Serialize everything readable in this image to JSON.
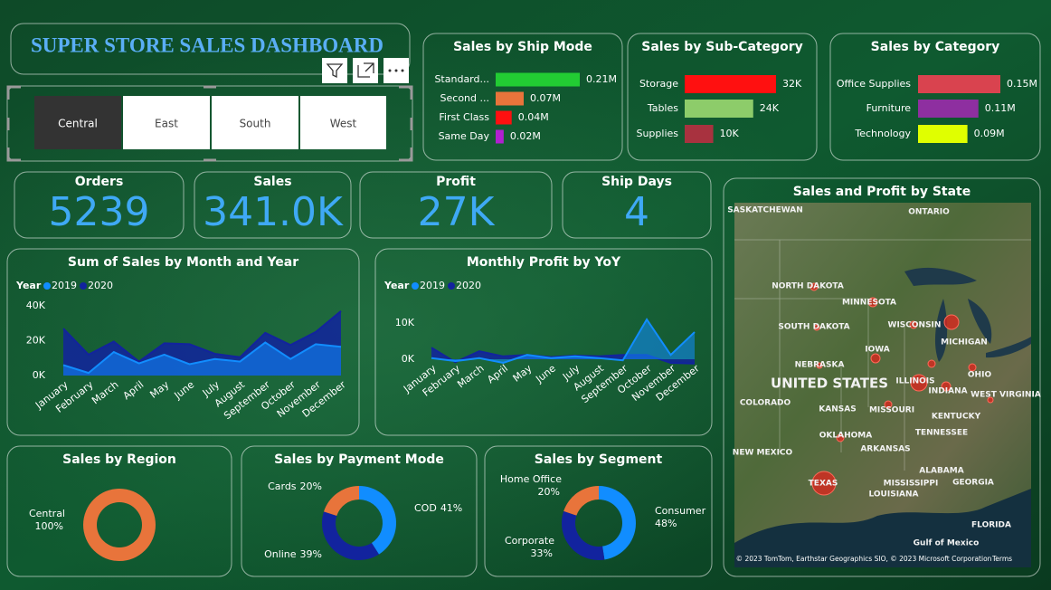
{
  "header": {
    "title": "SUPER STORE SALES DASHBOARD"
  },
  "slicer": {
    "options": [
      "Central",
      "East",
      "South",
      "West"
    ],
    "selected": 0
  },
  "cards": [
    {
      "label": "Orders",
      "value": "5239"
    },
    {
      "label": "Sales",
      "value": "341.0K"
    },
    {
      "label": "Profit",
      "value": "27K"
    },
    {
      "label": "Ship Days",
      "value": "4"
    }
  ],
  "chart_data": [
    {
      "type": "bar",
      "orientation": "horizontal",
      "title": "Sales by Ship Mode",
      "categories": [
        "Standard...",
        "Second ...",
        "First Class",
        "Same Day"
      ],
      "values": [
        0.21,
        0.07,
        0.04,
        0.02
      ],
      "value_labels": [
        "0.21M",
        "0.07M",
        "0.04M",
        "0.02M"
      ],
      "colors": [
        "#22cc33",
        "#e8743b",
        "#ff1010",
        "#b020d0"
      ]
    },
    {
      "type": "bar",
      "orientation": "horizontal",
      "title": "Sales by Sub-Category",
      "categories": [
        "Storage",
        "Tables",
        "Supplies"
      ],
      "values": [
        32,
        24,
        10
      ],
      "value_labels": [
        "32K",
        "24K",
        "10K"
      ],
      "colors": [
        "#ff1010",
        "#8dcc6a",
        "#a8323f"
      ]
    },
    {
      "type": "bar",
      "orientation": "horizontal",
      "title": "Sales by Category",
      "categories": [
        "Office Supplies",
        "Furniture",
        "Technology"
      ],
      "values": [
        0.15,
        0.11,
        0.09
      ],
      "value_labels": [
        "0.15M",
        "0.11M",
        "0.09M"
      ],
      "colors": [
        "#d9434f",
        "#8e2fa0",
        "#e0ff00"
      ]
    },
    {
      "type": "area",
      "title": "Sum of Sales by Month and Year",
      "legend_title": "Year",
      "categories": [
        "January",
        "February",
        "March",
        "April",
        "May",
        "June",
        "July",
        "August",
        "September",
        "October",
        "November",
        "December"
      ],
      "series": [
        {
          "name": "2019",
          "color": "#118dff",
          "values": [
            6000,
            1500,
            13500,
            7000,
            12000,
            6500,
            9500,
            8000,
            19000,
            9500,
            18000,
            16500
          ]
        },
        {
          "name": "2020",
          "color": "#12239e",
          "values": [
            27000,
            12000,
            19500,
            8000,
            18500,
            18000,
            12500,
            10500,
            24500,
            17500,
            25000,
            37000
          ]
        }
      ],
      "ylim": [
        0,
        40000
      ],
      "yticks": [
        {
          "value": 0,
          "label": "0K"
        },
        {
          "value": 20000,
          "label": "20K"
        },
        {
          "value": 40000,
          "label": "40K"
        }
      ]
    },
    {
      "type": "area",
      "title": "Monthly Profit by YoY",
      "legend_title": "Year",
      "categories": [
        "January",
        "February",
        "March",
        "April",
        "May",
        "June",
        "July",
        "August",
        "September",
        "October",
        "November",
        "December"
      ],
      "series": [
        {
          "name": "2019",
          "color": "#118dff",
          "values": [
            300,
            -500,
            300,
            -1000,
            1200,
            300,
            800,
            300,
            -300,
            11000,
            1200,
            7500
          ]
        },
        {
          "name": "2020",
          "color": "#12239e",
          "values": [
            3200,
            -800,
            2200,
            800,
            1200,
            600,
            1000,
            800,
            1200,
            1200,
            -1000,
            -1200
          ]
        }
      ],
      "ylim": [
        -5000,
        12500
      ],
      "yticks": [
        {
          "value": 0,
          "label": "0K"
        },
        {
          "value": 10000,
          "label": "10K"
        }
      ]
    },
    {
      "type": "pie",
      "donut": true,
      "title": "Sales by Region",
      "categories": [
        "Central"
      ],
      "values": [
        100
      ],
      "value_labels": [
        "100%"
      ],
      "colors": [
        "#e8743b"
      ]
    },
    {
      "type": "pie",
      "donut": true,
      "title": "Sales by Payment Mode",
      "categories": [
        "COD",
        "Online",
        "Cards"
      ],
      "values": [
        41,
        39,
        20
      ],
      "value_labels": [
        "41%",
        "39%",
        "20%"
      ],
      "colors": [
        "#118dff",
        "#12239e",
        "#e8743b"
      ]
    },
    {
      "type": "pie",
      "donut": true,
      "title": "Sales by Segment",
      "categories": [
        "Consumer",
        "Corporate",
        "Home Office"
      ],
      "values": [
        48,
        33,
        20
      ],
      "value_labels": [
        "48%",
        "33%",
        "20%"
      ],
      "colors": [
        "#118dff",
        "#12239e",
        "#e8743b"
      ]
    }
  ],
  "map": {
    "title": "Sales and Profit by State",
    "labels": [
      "SASKATCHEWAN",
      "ONTARIO",
      "NORTH DAKOTA",
      "MINNESOTA",
      "SOUTH DAKOTA",
      "WISCONSIN",
      "MICHIGAN",
      "IOWA",
      "NEBRASKA",
      "OHIO",
      "UNITED STATES",
      "ILLINOIS",
      "INDIANA",
      "COLORADO",
      "KANSAS",
      "MISSOURI",
      "KENTUCKY",
      "WEST VIRGINIA",
      "OKLAHOMA",
      "TENNESSEE",
      "ARKANSAS",
      "NEW MEXICO",
      "TEXAS",
      "ALABAMA",
      "MISSISSIPPI",
      "GEORGIA",
      "LOUISIANA",
      "FLORIDA",
      "Gulf of Mexico"
    ],
    "attribution": "© 2023 TomTom, Earthstar Geographics SIO, © 2023 Microsoft Corporation",
    "terms": "Terms"
  }
}
